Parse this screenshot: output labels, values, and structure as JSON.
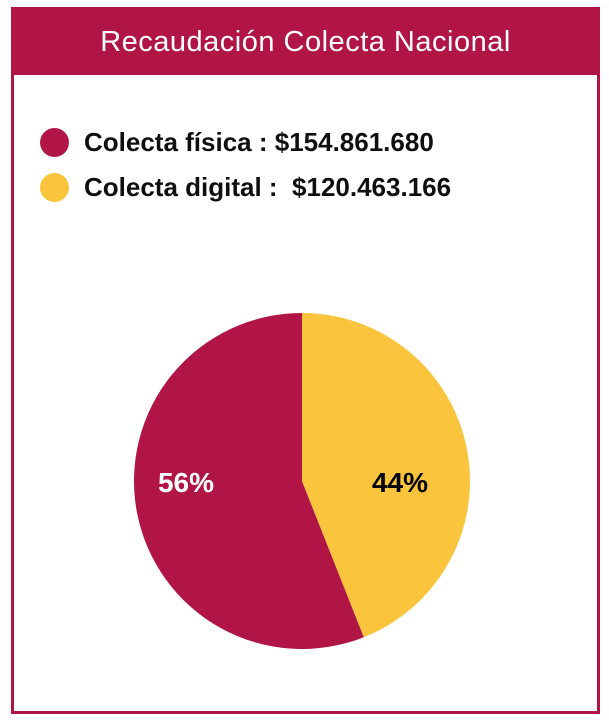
{
  "header": {
    "title": "Recaudación Colecta Nacional"
  },
  "legend": {
    "items": [
      {
        "label": "Colecta física : $154.861.680",
        "color": "#B01546"
      },
      {
        "label": "Colecta digital :  $120.463.166",
        "color": "#FAC43D"
      }
    ]
  },
  "chart_data": {
    "type": "pie",
    "title": "Recaudación Colecta Nacional",
    "slices": [
      {
        "name": "Colecta fisica",
        "value": 154861680,
        "amount_label": "$154.861.680",
        "percent": 56,
        "percent_label": "56%",
        "color": "#B01546",
        "label_color": "#FFFFFF"
      },
      {
        "name": "Colecta digital",
        "value": 120463166,
        "amount_label": "$120.463.166",
        "percent": 44,
        "percent_label": "44%",
        "color": "#FAC43D",
        "label_color": "#000000"
      }
    ],
    "start_angle_deg": 158.4,
    "direction": "clockwise",
    "legend_position": "top-left"
  },
  "colors": {
    "accent": "#B01546",
    "yellow": "#FAC43D",
    "background": "#FFFFFF"
  }
}
